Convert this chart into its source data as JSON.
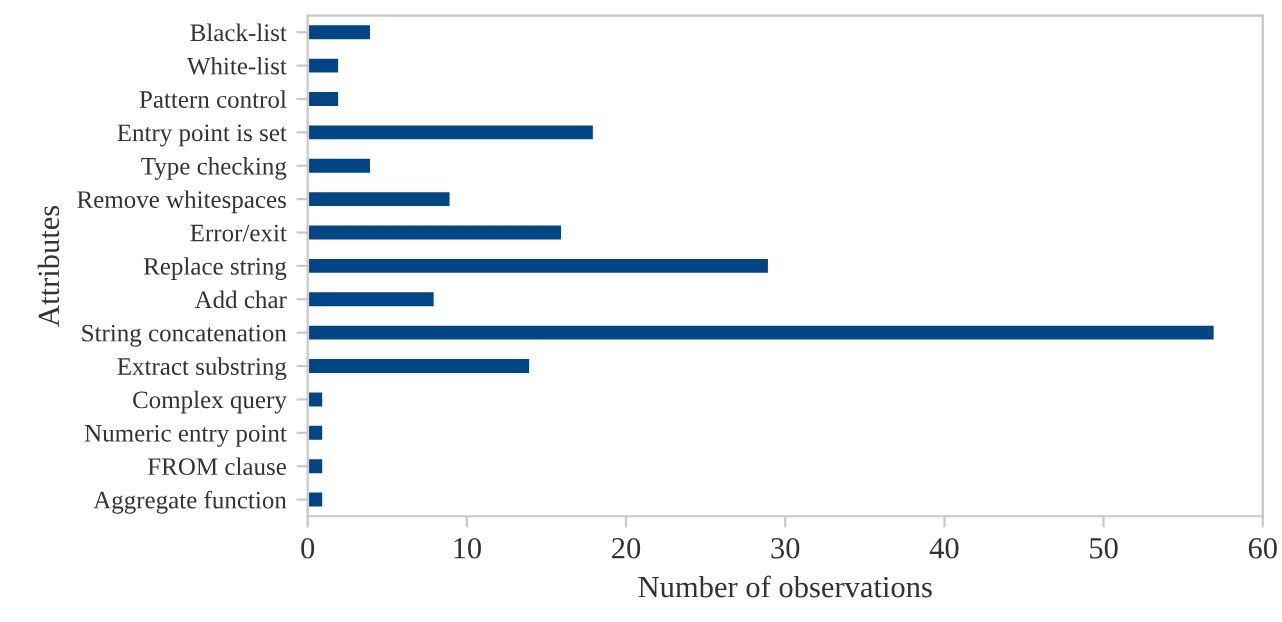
{
  "chart_data": {
    "type": "bar",
    "orientation": "horizontal",
    "xlabel": "Number of observations",
    "ylabel": "Attributes",
    "categories": [
      "Black-list",
      "White-list",
      "Pattern control",
      "Entry point is set",
      "Type checking",
      "Remove whitespaces",
      "Error/exit",
      "Replace string",
      "Add char",
      "String concatenation",
      "Extract substring",
      "Complex query",
      "Numeric entry point",
      "FROM clause",
      "Aggregate function"
    ],
    "values": [
      4,
      2,
      2,
      18,
      4,
      9,
      16,
      29,
      8,
      57,
      14,
      1,
      1,
      1,
      1
    ],
    "color": "#004586",
    "xlim": [
      0,
      60
    ],
    "xticks": [
      0,
      10,
      20,
      30,
      40,
      50,
      60
    ],
    "grid": false,
    "legend": false
  }
}
